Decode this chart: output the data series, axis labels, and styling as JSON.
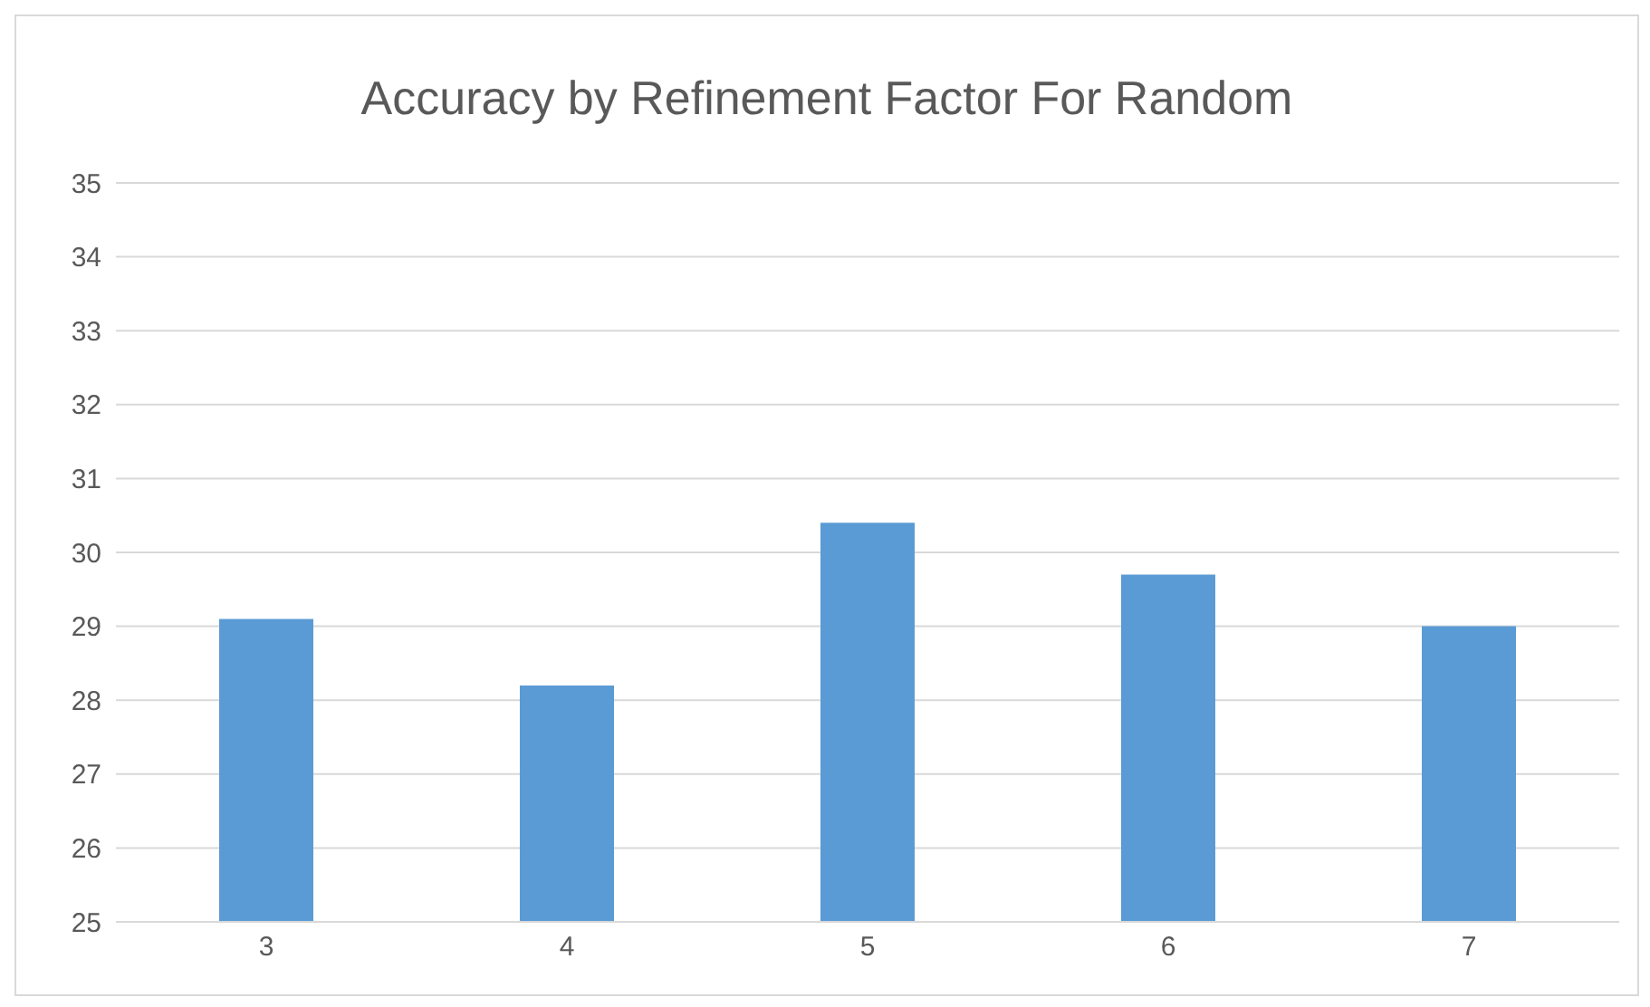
{
  "chart_data": {
    "type": "bar",
    "title": "Accuracy by Refinement Factor For Random",
    "categories": [
      "3",
      "4",
      "5",
      "6",
      "7"
    ],
    "values": [
      29.1,
      28.2,
      30.4,
      29.7,
      29.0
    ],
    "color": "#5b9bd5",
    "ylim": [
      25,
      35
    ],
    "yticks": [
      25,
      26,
      27,
      28,
      29,
      30,
      31,
      32,
      33,
      34,
      35
    ],
    "grid": "y"
  }
}
